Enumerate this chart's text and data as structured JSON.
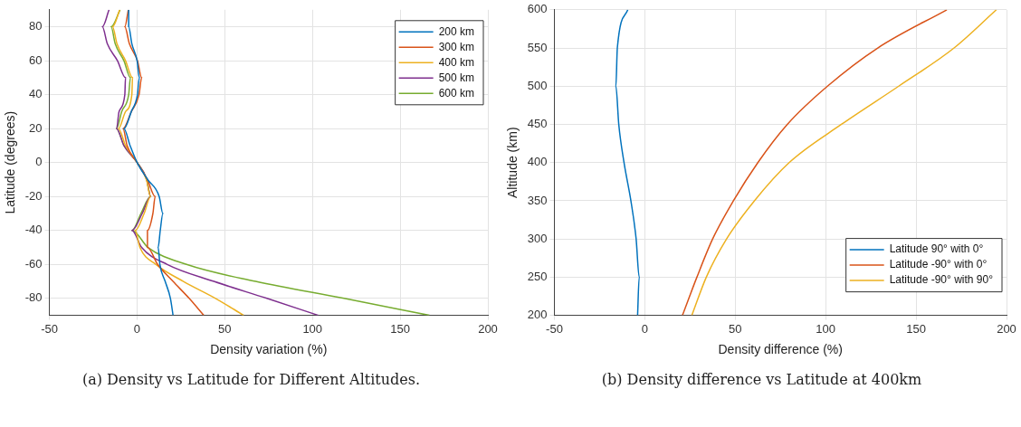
{
  "chart_data": [
    {
      "type": "line",
      "xlabel": "Density variation (%)",
      "ylabel": "Latitude (degrees)",
      "xlim": [
        -50,
        200
      ],
      "xticks": [
        -50,
        0,
        50,
        100,
        150,
        200
      ],
      "ylim": [
        -90,
        90
      ],
      "yticks": [
        -80,
        -60,
        -40,
        -20,
        0,
        20,
        40,
        60,
        80
      ],
      "grid": true,
      "legend": "top right",
      "annotations": [
        "(a) Density vs Latitude for Different Altitudes."
      ],
      "series": [
        {
          "name": "200 km",
          "color": "#0072bd",
          "x": [
            -4.8,
            -4.8,
            -3,
            0,
            1.3,
            0.2,
            -3.3,
            -7.5,
            -4,
            0,
            6,
            12.6,
            14.7,
            13.2,
            12,
            13,
            16,
            19,
            20.5
          ],
          "values": [
            90,
            80,
            70,
            60,
            50,
            40,
            30,
            20,
            10,
            0,
            -10,
            -20,
            -30,
            -40,
            -50,
            -60,
            -70,
            -80,
            -90
          ]
        },
        {
          "name": "300 km",
          "color": "#d95319",
          "x": [
            -5,
            -7,
            -4.4,
            0.2,
            2.6,
            1.1,
            -3.3,
            -8,
            -5.7,
            0,
            5.9,
            10.3,
            9,
            5.9,
            5.9,
            11.7,
            20.5,
            29.7,
            38
          ],
          "values": [
            90,
            80,
            70,
            60,
            50,
            40,
            30,
            20,
            10,
            0,
            -10,
            -20,
            -30,
            -40,
            -50,
            -60,
            -70,
            -80,
            -90
          ]
        },
        {
          "name": "400 km",
          "color": "#edb120",
          "x": [
            -9.9,
            -14,
            -11.5,
            -6.6,
            -2.6,
            -3,
            -6.6,
            -10.6,
            -6.6,
            0,
            5.3,
            7.7,
            4,
            -1.1,
            1.6,
            10.8,
            26.4,
            44.7,
            60.8
          ],
          "values": [
            90,
            80,
            70,
            60,
            50,
            40,
            30,
            20,
            10,
            0,
            -10,
            -20,
            -30,
            -40,
            -50,
            -60,
            -70,
            -80,
            -90
          ]
        },
        {
          "name": "500 km",
          "color": "#7e2f8e",
          "x": [
            -16,
            -19.8,
            -17,
            -11.2,
            -6.6,
            -7,
            -10.3,
            -11.7,
            -7.5,
            0,
            5.5,
            7.7,
            2.9,
            -2.9,
            2.6,
            17.2,
            43.8,
            74,
            103.4
          ],
          "values": [
            90,
            80,
            70,
            60,
            50,
            40,
            30,
            20,
            10,
            0,
            -10,
            -20,
            -30,
            -40,
            -50,
            -60,
            -70,
            -80,
            -90
          ]
        },
        {
          "name": "600 km",
          "color": "#77ac30",
          "x": [
            -9.7,
            -14.8,
            -12.5,
            -7.5,
            -3.8,
            -4.8,
            -8.8,
            -11.7,
            -7.5,
            0,
            5.5,
            7.7,
            2.2,
            -2.9,
            6.2,
            28.2,
            67.6,
            118,
            166.7
          ],
          "values": [
            90,
            80,
            70,
            60,
            50,
            40,
            30,
            20,
            10,
            0,
            -10,
            -20,
            -30,
            -40,
            -50,
            -60,
            -70,
            -80,
            -90
          ]
        }
      ]
    },
    {
      "type": "line",
      "xlabel": "Density difference (%)",
      "ylabel": "Altitude (km)",
      "xlim": [
        -50,
        200
      ],
      "xticks": [
        -50,
        0,
        50,
        100,
        150,
        200
      ],
      "ylim": [
        200,
        600
      ],
      "yticks": [
        200,
        250,
        300,
        350,
        400,
        450,
        500,
        550,
        600
      ],
      "grid": true,
      "legend": "bottom right",
      "annotations": [
        "(b) Density difference vs Latitude at 400km"
      ],
      "series": [
        {
          "name": "Latitude 90° with 0°",
          "color": "#0072bd",
          "x": [
            -4,
            -3.1,
            -4.8,
            -7.7,
            -11.5,
            -14.4,
            -16,
            -15.2,
            -9.4
          ],
          "values": [
            200,
            250,
            300,
            350,
            400,
            450,
            500,
            550,
            600
          ]
        },
        {
          "name": "Latitude -90° with 0°",
          "color": "#d95319",
          "x": [
            20.8,
            28.8,
            37.5,
            49,
            62.5,
            78.8,
            101,
            128.8,
            167
          ],
          "values": [
            200,
            250,
            300,
            350,
            400,
            450,
            500,
            550,
            600
          ]
        },
        {
          "name": "Latitude -90° with 90°",
          "color": "#edb120",
          "x": [
            26,
            34,
            45.2,
            60.6,
            79.8,
            108.7,
            140.4,
            171,
            194.4
          ],
          "values": [
            200,
            250,
            300,
            350,
            400,
            450,
            500,
            550,
            600
          ]
        }
      ]
    }
  ]
}
